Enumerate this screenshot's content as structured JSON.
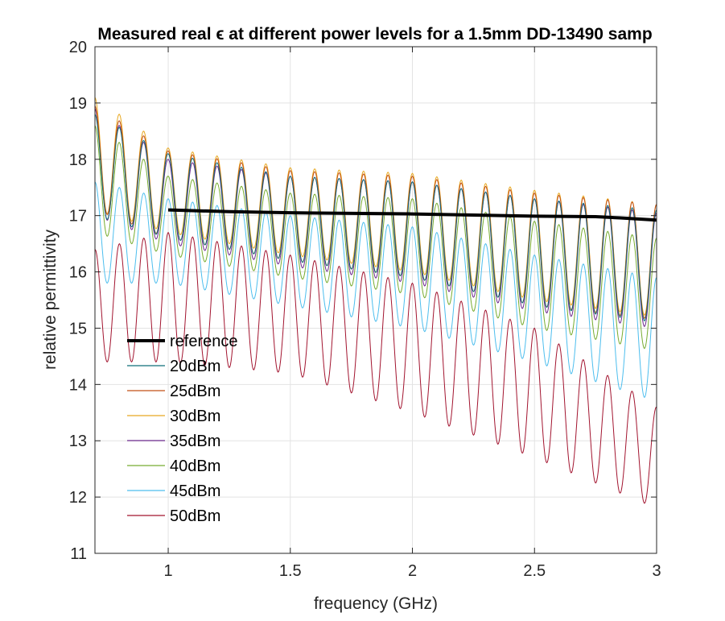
{
  "chart_data": {
    "type": "line",
    "title": "Measured real ϵ at different power levels for a 1.5mm DD-13490 samp",
    "xlabel": "frequency (GHz)",
    "ylabel": "relative permittivity",
    "xlim": [
      0.7,
      3.0
    ],
    "ylim": [
      11,
      20
    ],
    "x_ticks": [
      1,
      1.5,
      2,
      2.5,
      3
    ],
    "x_tick_labels": [
      "1",
      "1.5",
      "2",
      "2.5",
      "3"
    ],
    "y_ticks": [
      11,
      12,
      13,
      14,
      15,
      16,
      17,
      18,
      19,
      20
    ],
    "y_tick_labels": [
      "11",
      "12",
      "13",
      "14",
      "15",
      "16",
      "17",
      "18",
      "19",
      "20"
    ],
    "grid": true,
    "legend_position": "lower-left",
    "reference": {
      "name": "reference",
      "color": "#000000",
      "x": [
        1.0,
        1.25,
        1.5,
        1.75,
        2.0,
        2.25,
        2.5,
        2.75,
        2.85,
        3.0
      ],
      "y": [
        17.1,
        17.07,
        17.05,
        17.04,
        17.03,
        17.01,
        16.99,
        16.98,
        16.96,
        16.92
      ]
    },
    "oscillation_period_ghz": 0.1,
    "series": [
      {
        "name": "20dBm",
        "color": "#0e6e79",
        "upper": {
          "x": [
            0.7,
            1.0,
            1.5,
            2.0,
            2.5,
            3.0
          ],
          "y": [
            18.8,
            18.1,
            17.7,
            17.6,
            17.3,
            17.1
          ]
        },
        "lower": {
          "x": [
            0.7,
            1.0,
            1.5,
            2.0,
            2.5,
            3.0
          ],
          "y": [
            17.0,
            16.6,
            16.2,
            15.9,
            15.4,
            15.1
          ]
        }
      },
      {
        "name": "25dBm",
        "color": "#c25016",
        "upper": {
          "x": [
            0.7,
            1.0,
            1.5,
            2.0,
            2.5,
            3.0
          ],
          "y": [
            18.95,
            18.15,
            17.8,
            17.7,
            17.4,
            17.2
          ]
        },
        "lower": {
          "x": [
            0.7,
            1.0,
            1.5,
            2.0,
            2.5,
            3.0
          ],
          "y": [
            17.1,
            16.6,
            16.2,
            15.9,
            15.4,
            15.15
          ]
        }
      },
      {
        "name": "30dBm",
        "color": "#e8a820",
        "upper": {
          "x": [
            0.7,
            1.0,
            1.5,
            2.0,
            2.5,
            3.0
          ],
          "y": [
            19.1,
            18.2,
            17.85,
            17.75,
            17.45,
            17.2
          ]
        },
        "lower": {
          "x": [
            0.7,
            1.0,
            1.5,
            2.0,
            2.5,
            3.0
          ],
          "y": [
            17.1,
            16.7,
            16.3,
            16.0,
            15.5,
            15.2
          ]
        }
      },
      {
        "name": "35dBm",
        "color": "#6e2a8e",
        "upper": {
          "x": [
            0.7,
            1.0,
            1.5,
            2.0,
            2.5,
            3.0
          ],
          "y": [
            18.9,
            18.0,
            17.7,
            17.6,
            17.3,
            17.05
          ]
        },
        "lower": {
          "x": [
            0.7,
            1.0,
            1.5,
            2.0,
            2.5,
            3.0
          ],
          "y": [
            17.0,
            16.5,
            16.1,
            15.8,
            15.3,
            15.0
          ]
        }
      },
      {
        "name": "40dBm",
        "color": "#77ac30",
        "upper": {
          "x": [
            0.7,
            1.0,
            1.5,
            2.0,
            2.5,
            3.0
          ],
          "y": [
            18.6,
            17.7,
            17.4,
            17.3,
            16.9,
            16.6
          ]
        },
        "lower": {
          "x": [
            0.7,
            1.0,
            1.5,
            2.0,
            2.5,
            3.0
          ],
          "y": [
            16.7,
            16.3,
            15.9,
            15.6,
            15.0,
            14.6
          ]
        }
      },
      {
        "name": "45dBm",
        "color": "#4dbeee",
        "upper": {
          "x": [
            0.7,
            1.0,
            1.5,
            2.0,
            2.5,
            3.0
          ],
          "y": [
            17.6,
            17.3,
            17.0,
            16.8,
            16.3,
            15.9
          ]
        },
        "lower": {
          "x": [
            0.7,
            1.0,
            1.5,
            2.0,
            2.5,
            3.0
          ],
          "y": [
            15.8,
            15.8,
            15.4,
            15.0,
            14.4,
            13.7
          ]
        }
      },
      {
        "name": "50dBm",
        "color": "#a2142f",
        "upper": {
          "x": [
            0.7,
            1.0,
            1.5,
            2.0,
            2.5,
            3.0
          ],
          "y": [
            16.4,
            16.7,
            16.3,
            15.8,
            15.0,
            13.6
          ]
        },
        "lower": {
          "x": [
            0.7,
            1.0,
            1.5,
            2.0,
            2.5,
            3.0
          ],
          "y": [
            14.4,
            14.4,
            14.2,
            13.5,
            12.7,
            11.8
          ]
        }
      }
    ]
  }
}
